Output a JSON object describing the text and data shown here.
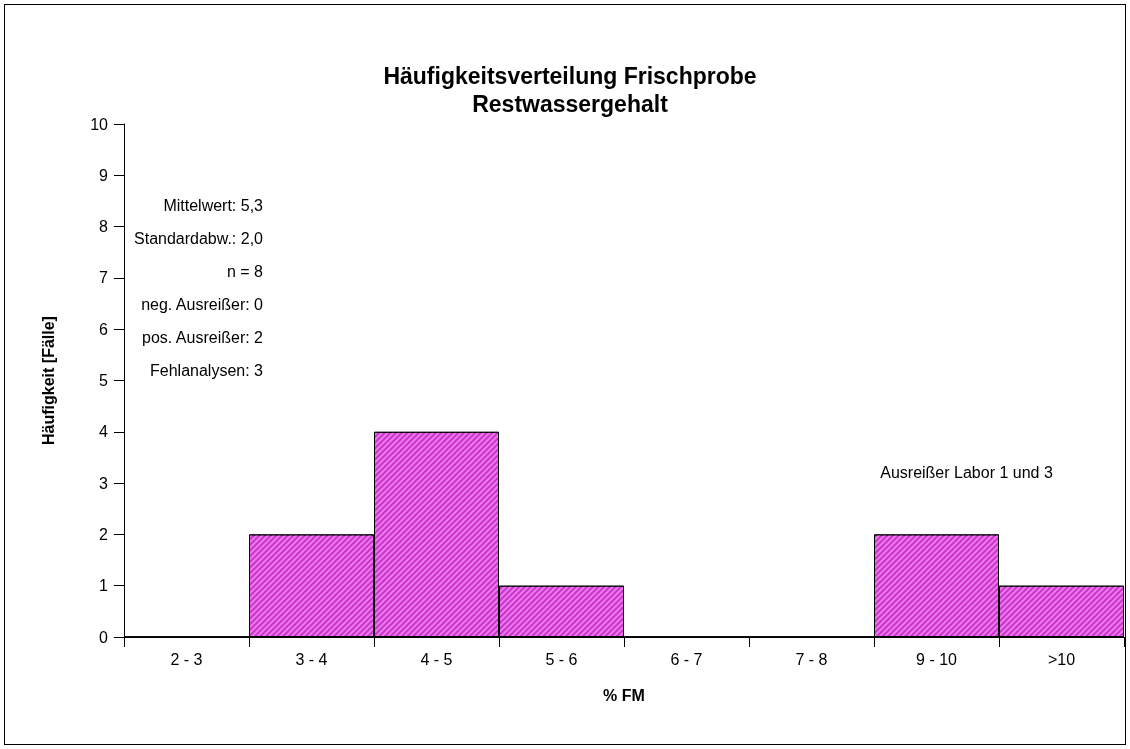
{
  "chart_data": {
    "type": "bar",
    "title": "Häufigkeitsverteilung Frischprobe\nRestwassergehalt",
    "xlabel": "% FM",
    "ylabel": "Häufigkeit [Fälle]",
    "categories": [
      "2 - 3",
      "3 - 4",
      "4 - 5",
      "5 - 6",
      "6 - 7",
      "7 - 8",
      "9 - 10",
      ">10"
    ],
    "values": [
      0,
      2,
      4,
      1,
      0,
      0,
      2,
      1
    ],
    "color": "#cc33cc",
    "ylim": [
      0,
      10
    ],
    "yticks": [
      0,
      1,
      2,
      3,
      4,
      5,
      6,
      7,
      8,
      9,
      10
    ],
    "annotations": [
      "Mittelwert: 5,3",
      "Standardabw.: 2,0",
      "n = 8",
      "neg. Ausreißer: 0",
      "pos. Ausreißer: 2",
      "Fehlanalysen: 3",
      "Ausreißer Labor 1 und 3"
    ]
  }
}
